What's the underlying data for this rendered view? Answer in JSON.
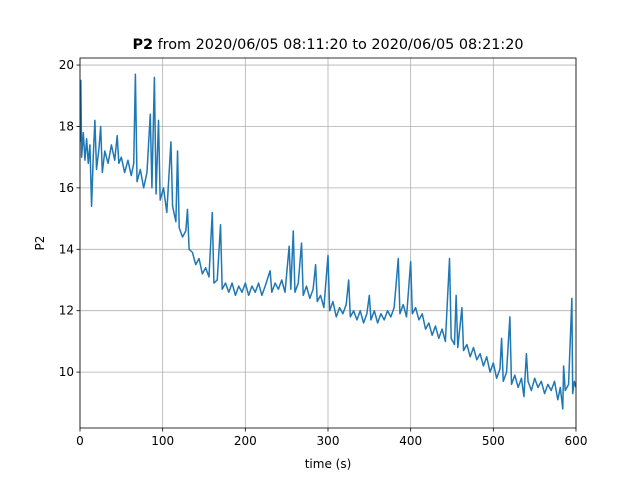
{
  "chart_data": {
    "type": "line",
    "title": {
      "bold": "P2",
      "rest": "from 2020/06/05 08:11:20 to 2020/06/05 08:21:20"
    },
    "xlabel": "time (s)",
    "ylabel": "P2",
    "xlim": [
      0,
      600
    ],
    "xticks": [
      0,
      100,
      200,
      300,
      400,
      500,
      600
    ],
    "ylim": [
      8.18,
      20.23
    ],
    "yticks": [
      10,
      12,
      14,
      16,
      18,
      20
    ],
    "grid": true,
    "series": [
      {
        "color": "#1f77b4",
        "x": [
          0,
          1,
          2,
          4,
          6,
          8,
          10,
          12,
          14,
          16,
          18,
          20,
          23,
          25,
          27,
          30,
          34,
          38,
          42,
          45,
          47,
          50,
          54,
          58,
          62,
          65,
          67,
          69,
          73,
          77,
          81,
          85,
          87,
          90,
          92,
          95,
          97,
          101,
          105,
          110,
          112,
          116,
          118,
          120,
          124,
          128,
          130,
          132,
          136,
          140,
          144,
          148,
          152,
          156,
          160,
          162,
          166,
          170,
          172,
          176,
          180,
          184,
          188,
          192,
          196,
          200,
          204,
          208,
          212,
          216,
          220,
          224,
          230,
          232,
          236,
          240,
          244,
          248,
          253,
          255,
          258,
          260,
          264,
          268,
          270,
          274,
          278,
          282,
          285,
          287,
          291,
          295,
          300,
          302,
          306,
          310,
          314,
          318,
          322,
          325,
          327,
          331,
          335,
          339,
          343,
          347,
          350,
          352,
          356,
          360,
          364,
          368,
          372,
          376,
          380,
          385,
          387,
          391,
          395,
          400,
          402,
          406,
          410,
          414,
          418,
          422,
          426,
          430,
          434,
          438,
          442,
          447,
          449,
          453,
          455,
          457,
          462,
          464,
          468,
          472,
          476,
          480,
          484,
          488,
          492,
          496,
          500,
          504,
          508,
          510,
          512,
          516,
          520,
          522,
          526,
          530,
          534,
          537,
          540,
          542,
          546,
          550,
          554,
          558,
          562,
          566,
          570,
          574,
          578,
          581,
          584,
          585,
          587,
          591,
          595,
          596,
          598,
          600
        ],
        "values": [
          17.5,
          19.5,
          17.0,
          17.8,
          16.9,
          17.6,
          16.8,
          17.4,
          15.4,
          17.0,
          18.2,
          16.6,
          17.3,
          18.0,
          16.5,
          17.2,
          16.8,
          17.4,
          16.9,
          17.7,
          16.8,
          17.0,
          16.5,
          16.9,
          16.4,
          16.8,
          19.7,
          16.2,
          16.6,
          16.0,
          16.5,
          18.4,
          16.0,
          19.6,
          15.8,
          18.2,
          15.6,
          16.0,
          15.2,
          17.5,
          15.4,
          14.9,
          17.2,
          14.7,
          14.4,
          14.6,
          15.3,
          14.0,
          13.9,
          13.5,
          13.7,
          13.2,
          13.4,
          13.1,
          15.2,
          12.9,
          13.0,
          14.8,
          12.7,
          12.9,
          12.6,
          12.9,
          12.5,
          12.8,
          12.6,
          12.9,
          12.5,
          12.8,
          12.6,
          12.9,
          12.5,
          12.8,
          13.3,
          12.6,
          12.9,
          12.7,
          13.0,
          12.6,
          14.1,
          12.7,
          14.6,
          12.6,
          12.9,
          14.2,
          12.5,
          12.8,
          12.4,
          12.7,
          13.5,
          12.3,
          12.5,
          12.1,
          13.8,
          12.0,
          12.3,
          11.8,
          12.1,
          11.9,
          12.2,
          13.0,
          11.8,
          12.0,
          11.7,
          12.0,
          11.6,
          11.9,
          12.5,
          11.7,
          12.0,
          11.6,
          11.9,
          11.7,
          12.0,
          11.8,
          12.1,
          13.7,
          11.9,
          12.2,
          11.8,
          13.6,
          11.9,
          12.1,
          11.7,
          11.9,
          11.4,
          11.6,
          11.2,
          11.5,
          11.1,
          11.4,
          11.0,
          13.7,
          11.1,
          10.9,
          12.5,
          10.8,
          12.1,
          10.7,
          10.9,
          10.5,
          10.8,
          10.4,
          10.6,
          10.2,
          10.5,
          10.0,
          10.3,
          9.8,
          10.1,
          11.1,
          9.7,
          10.0,
          11.8,
          9.6,
          9.9,
          9.5,
          9.8,
          9.2,
          10.6,
          9.7,
          9.4,
          9.8,
          9.5,
          9.7,
          9.3,
          9.6,
          9.4,
          9.7,
          9.1,
          9.5,
          8.8,
          10.2,
          9.4,
          9.6,
          12.4,
          9.3,
          9.7,
          9.5
        ]
      }
    ]
  }
}
